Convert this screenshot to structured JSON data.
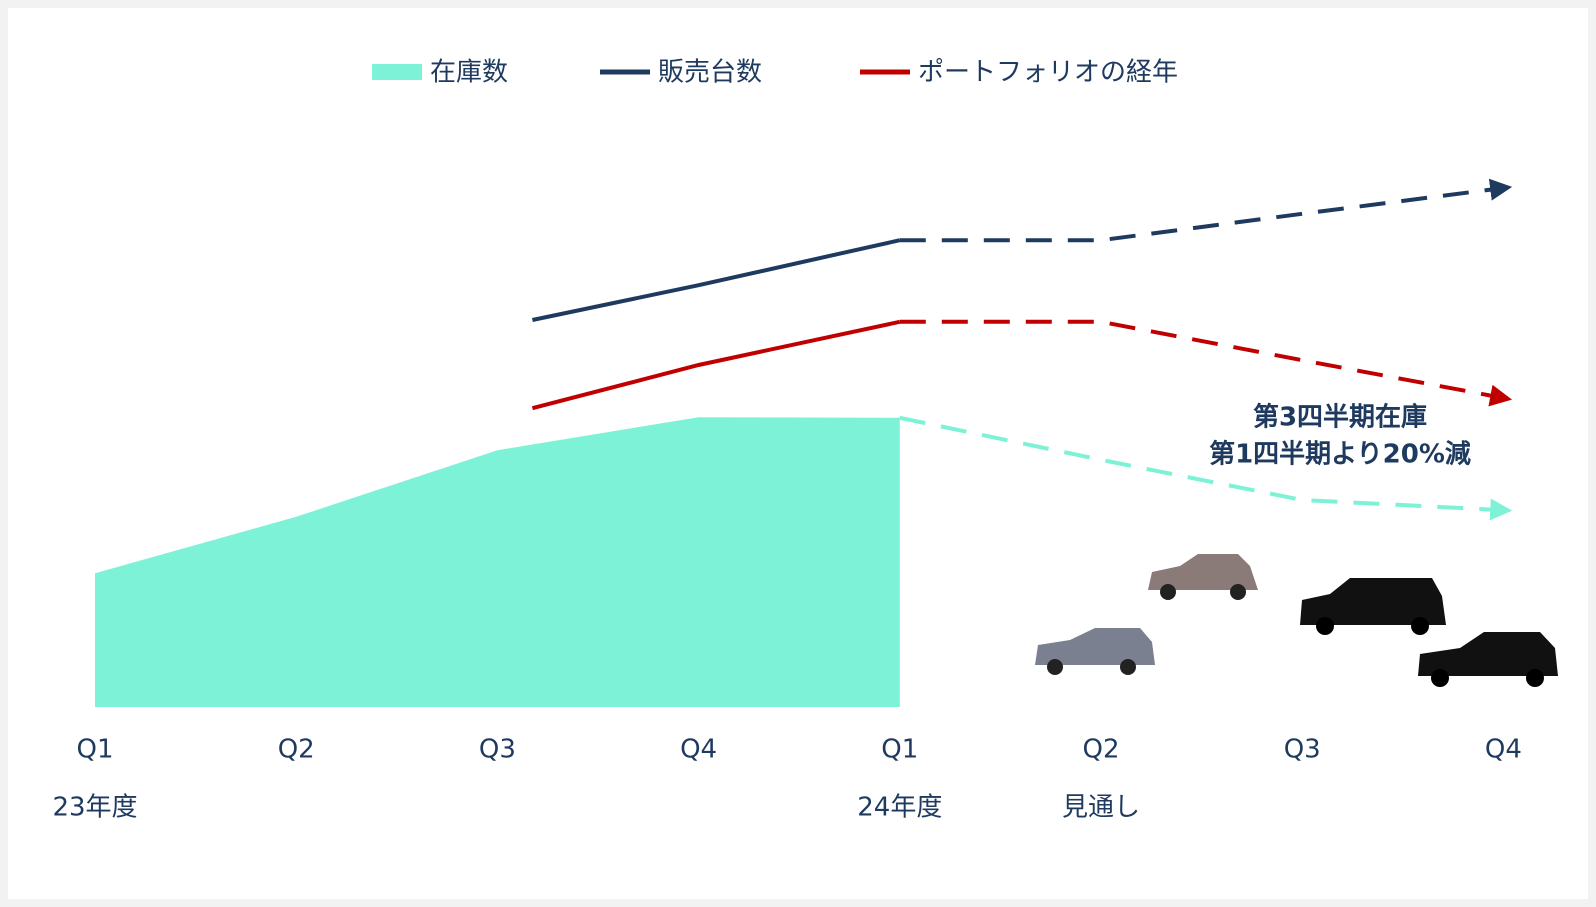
{
  "chart_data": {
    "type": "line",
    "categories": [
      "Q1",
      "Q2",
      "Q3",
      "Q4",
      "Q1",
      "Q2",
      "Q3",
      "Q4"
    ],
    "period_labels": [
      "23年度",
      null,
      null,
      null,
      "24年度",
      "見通し",
      null,
      null
    ],
    "ylim": [
      0,
      100
    ],
    "legend": "top",
    "series": [
      {
        "name": "在庫数",
        "color": "#7ef2d6",
        "style": "area",
        "dashed_from": 4,
        "values": [
          22.3,
          31.7,
          42.8,
          48.3,
          48.2,
          41.2,
          34.5,
          32.8
        ]
      },
      {
        "name": "販売台数",
        "color": "#1f3a5f",
        "style": "line",
        "dashed_from": 4,
        "values": [
          null,
          null,
          64.5,
          70.3,
          77.8,
          77.8,
          82.2,
          86.5
        ]
      },
      {
        "name": "ポートフォリオの経年",
        "color": "#c00000",
        "style": "line",
        "dashed_from": 4,
        "values": [
          null,
          null,
          49.8,
          57.0,
          64.2,
          64.2,
          57.8,
          51.5
        ]
      }
    ],
    "annotation": [
      "第3四半期在庫",
      "第1四半期より20%減"
    ]
  }
}
